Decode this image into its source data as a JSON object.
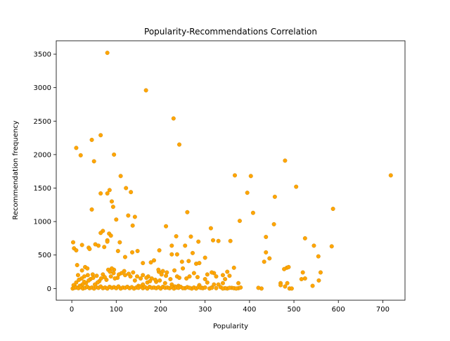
{
  "chart_data": {
    "type": "scatter",
    "title": "Popularity-Recommendations Correlation",
    "xlabel": "Popularity",
    "ylabel": "Recommendation frequency",
    "xlim": [
      -35,
      750
    ],
    "ylim": [
      -175,
      3700
    ],
    "xticks": [
      0,
      100,
      200,
      300,
      400,
      500,
      600,
      700
    ],
    "yticks": [
      0,
      500,
      1000,
      1500,
      2000,
      2500,
      3000,
      3500
    ],
    "grid": false,
    "legend": "none",
    "marker_color": "#FFA500",
    "marker_edge_color": "#C8860A",
    "points": [
      [
        80,
        3520
      ],
      [
        167,
        2960
      ],
      [
        229,
        2540
      ],
      [
        242,
        2150
      ],
      [
        65,
        2290
      ],
      [
        45,
        2220
      ],
      [
        10,
        2100
      ],
      [
        20,
        1990
      ],
      [
        95,
        2000
      ],
      [
        50,
        1900
      ],
      [
        480,
        1910
      ],
      [
        718,
        1690
      ],
      [
        110,
        1680
      ],
      [
        367,
        1690
      ],
      [
        403,
        1680
      ],
      [
        122,
        1500
      ],
      [
        505,
        1520
      ],
      [
        80,
        1420
      ],
      [
        85,
        1470
      ],
      [
        133,
        1440
      ],
      [
        65,
        1420
      ],
      [
        395,
        1430
      ],
      [
        457,
        1370
      ],
      [
        90,
        1300
      ],
      [
        45,
        1180
      ],
      [
        93,
        1220
      ],
      [
        260,
        1140
      ],
      [
        408,
        1130
      ],
      [
        588,
        1190
      ],
      [
        127,
        1090
      ],
      [
        142,
        1070
      ],
      [
        100,
        1030
      ],
      [
        378,
        1010
      ],
      [
        455,
        960
      ],
      [
        212,
        930
      ],
      [
        137,
        940
      ],
      [
        313,
        900
      ],
      [
        70,
        860
      ],
      [
        84,
        820
      ],
      [
        65,
        830
      ],
      [
        88,
        790
      ],
      [
        235,
        780
      ],
      [
        268,
        775
      ],
      [
        285,
        700
      ],
      [
        437,
        770
      ],
      [
        525,
        750
      ],
      [
        318,
        720
      ],
      [
        330,
        710
      ],
      [
        80,
        720
      ],
      [
        80,
        700
      ],
      [
        108,
        690
      ],
      [
        3,
        690
      ],
      [
        357,
        710
      ],
      [
        23,
        650
      ],
      [
        53,
        660
      ],
      [
        60,
        640
      ],
      [
        73,
        620
      ],
      [
        38,
        610
      ],
      [
        40,
        590
      ],
      [
        5,
        600
      ],
      [
        10,
        570
      ],
      [
        225,
        640
      ],
      [
        255,
        640
      ],
      [
        545,
        640
      ],
      [
        585,
        630
      ],
      [
        148,
        560
      ],
      [
        136,
        540
      ],
      [
        197,
        570
      ],
      [
        104,
        560
      ],
      [
        225,
        510
      ],
      [
        237,
        510
      ],
      [
        272,
        530
      ],
      [
        437,
        540
      ],
      [
        555,
        480
      ],
      [
        120,
        470
      ],
      [
        300,
        460
      ],
      [
        445,
        450
      ],
      [
        178,
        390
      ],
      [
        185,
        420
      ],
      [
        248,
        400
      ],
      [
        160,
        380
      ],
      [
        263,
        410
      ],
      [
        280,
        370
      ],
      [
        287,
        380
      ],
      [
        365,
        310
      ],
      [
        433,
        400
      ],
      [
        484,
        310
      ],
      [
        12,
        350
      ],
      [
        30,
        320
      ],
      [
        35,
        300
      ],
      [
        23,
        270
      ],
      [
        95,
        280
      ],
      [
        90,
        300
      ],
      [
        82,
        280
      ],
      [
        250,
        300
      ],
      [
        320,
        230
      ],
      [
        350,
        250
      ],
      [
        340,
        200
      ],
      [
        520,
        240
      ],
      [
        560,
        240
      ],
      [
        488,
        320
      ],
      [
        196,
        250
      ],
      [
        205,
        260
      ],
      [
        231,
        270
      ],
      [
        202,
        210
      ],
      [
        172,
        180
      ],
      [
        283,
        170
      ],
      [
        237,
        180
      ],
      [
        258,
        150
      ],
      [
        375,
        80
      ],
      [
        470,
        80
      ],
      [
        525,
        150
      ],
      [
        478,
        290
      ],
      [
        517,
        140
      ],
      [
        556,
        120
      ],
      [
        542,
        40
      ],
      [
        427,
        0
      ],
      [
        420,
        10
      ],
      [
        490,
        0
      ],
      [
        495,
        0
      ],
      [
        480,
        30
      ],
      [
        470,
        50
      ],
      [
        485,
        80
      ],
      [
        350,
        0
      ],
      [
        360,
        10
      ],
      [
        345,
        5
      ],
      [
        375,
        5
      ],
      [
        315,
        15
      ],
      [
        293,
        10
      ],
      [
        305,
        90
      ],
      [
        287,
        50
      ],
      [
        320,
        60
      ],
      [
        330,
        60
      ],
      [
        340,
        80
      ],
      [
        270,
        0
      ],
      [
        255,
        5
      ],
      [
        240,
        40
      ],
      [
        232,
        30
      ],
      [
        225,
        60
      ],
      [
        210,
        80
      ],
      [
        198,
        120
      ],
      [
        190,
        100
      ],
      [
        180,
        150
      ],
      [
        170,
        90
      ],
      [
        160,
        60
      ],
      [
        150,
        40
      ],
      [
        142,
        120
      ],
      [
        132,
        180
      ],
      [
        128,
        220
      ],
      [
        120,
        200
      ],
      [
        112,
        230
      ],
      [
        103,
        160
      ],
      [
        97,
        150
      ],
      [
        88,
        180
      ],
      [
        78,
        130
      ],
      [
        70,
        210
      ],
      [
        62,
        110
      ],
      [
        58,
        90
      ],
      [
        52,
        60
      ],
      [
        47,
        210
      ],
      [
        42,
        140
      ],
      [
        38,
        120
      ],
      [
        32,
        80
      ],
      [
        28,
        100
      ],
      [
        24,
        60
      ],
      [
        18,
        40
      ],
      [
        14,
        200
      ],
      [
        10,
        90
      ],
      [
        7,
        30
      ],
      [
        4,
        50
      ],
      [
        2,
        0
      ],
      [
        6,
        10
      ],
      [
        10,
        15
      ],
      [
        15,
        5
      ],
      [
        20,
        20
      ],
      [
        25,
        0
      ],
      [
        30,
        10
      ],
      [
        35,
        25
      ],
      [
        40,
        5
      ],
      [
        45,
        15
      ],
      [
        50,
        0
      ],
      [
        55,
        20
      ],
      [
        60,
        10
      ],
      [
        65,
        30
      ],
      [
        70,
        5
      ],
      [
        75,
        15
      ],
      [
        80,
        0
      ],
      [
        85,
        25
      ],
      [
        90,
        10
      ],
      [
        95,
        20
      ],
      [
        100,
        5
      ],
      [
        105,
        30
      ],
      [
        110,
        0
      ],
      [
        115,
        15
      ],
      [
        120,
        10
      ],
      [
        125,
        25
      ],
      [
        130,
        5
      ],
      [
        135,
        20
      ],
      [
        140,
        0
      ],
      [
        145,
        15
      ],
      [
        150,
        10
      ],
      [
        155,
        30
      ],
      [
        160,
        5
      ],
      [
        165,
        20
      ],
      [
        170,
        0
      ],
      [
        175,
        25
      ],
      [
        180,
        10
      ],
      [
        185,
        15
      ],
      [
        190,
        5
      ],
      [
        195,
        20
      ],
      [
        200,
        0
      ],
      [
        205,
        25
      ],
      [
        210,
        10
      ],
      [
        215,
        15
      ],
      [
        220,
        5
      ],
      [
        225,
        20
      ],
      [
        230,
        0
      ],
      [
        235,
        15
      ],
      [
        240,
        10
      ],
      [
        245,
        25
      ],
      [
        250,
        5
      ],
      [
        260,
        20
      ],
      [
        265,
        10
      ],
      [
        275,
        15
      ],
      [
        280,
        0
      ],
      [
        285,
        20
      ],
      [
        290,
        10
      ],
      [
        295,
        5
      ],
      [
        300,
        15
      ],
      [
        310,
        0
      ],
      [
        315,
        10
      ],
      [
        325,
        5
      ],
      [
        335,
        20
      ],
      [
        340,
        0
      ],
      [
        355,
        10
      ],
      [
        365,
        5
      ],
      [
        370,
        0
      ],
      [
        380,
        15
      ],
      [
        160,
        200
      ],
      [
        214,
        240
      ],
      [
        195,
        280
      ],
      [
        275,
        230
      ],
      [
        305,
        210
      ],
      [
        315,
        240
      ],
      [
        325,
        180
      ],
      [
        345,
        140
      ],
      [
        355,
        190
      ],
      [
        300,
        140
      ],
      [
        265,
        180
      ],
      [
        242,
        160
      ],
      [
        222,
        140
      ],
      [
        212,
        190
      ],
      [
        188,
        130
      ],
      [
        176,
        110
      ],
      [
        168,
        160
      ],
      [
        155,
        150
      ],
      [
        147,
        180
      ],
      [
        138,
        240
      ],
      [
        118,
        260
      ],
      [
        106,
        210
      ],
      [
        94,
        230
      ],
      [
        86,
        250
      ],
      [
        74,
        170
      ],
      [
        66,
        150
      ],
      [
        56,
        190
      ],
      [
        48,
        160
      ],
      [
        36,
        200
      ],
      [
        28,
        180
      ],
      [
        22,
        150
      ],
      [
        16,
        130
      ]
    ]
  }
}
